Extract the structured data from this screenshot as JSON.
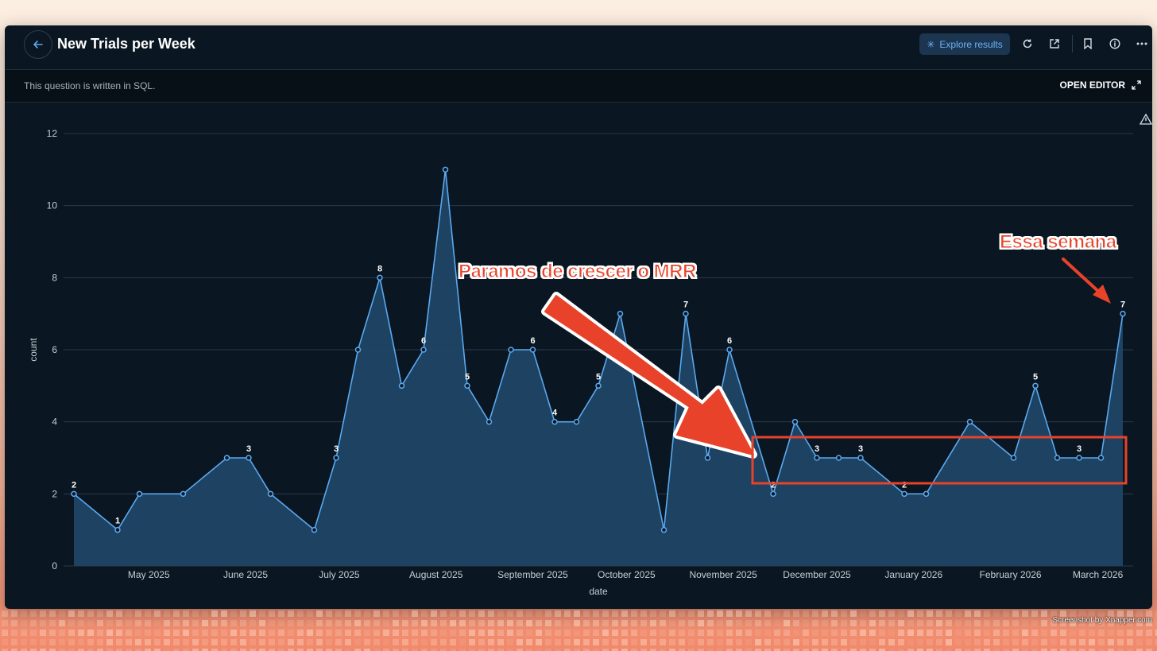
{
  "header": {
    "title": "New Trials per Week",
    "explore_label": "Explore results"
  },
  "subbar": {
    "sql_note": "This question is written in SQL.",
    "open_editor": "OPEN EDITOR"
  },
  "icons": {
    "back": "arrow-left-icon",
    "explore": "sparkle-icon",
    "refresh": "refresh-icon",
    "share": "external-link-icon",
    "bookmark": "bookmark-icon",
    "info": "info-icon",
    "more": "more-icon",
    "expand": "expand-icon",
    "warning": "warning-icon"
  },
  "chart_data": {
    "type": "area",
    "xlabel": "date",
    "ylabel": "count",
    "ylim": [
      0,
      12
    ],
    "yticks": [
      0,
      2,
      4,
      6,
      8,
      10,
      12
    ],
    "grid": true,
    "x_tick_labels": [
      "May 2025",
      "June 2025",
      "July 2025",
      "August 2025",
      "September 2025",
      "October 2025",
      "November 2025",
      "December 2025",
      "January 2026",
      "February 2026",
      "March 2026"
    ],
    "x_tick_dates": [
      "2025-05-01",
      "2025-06-01",
      "2025-07-01",
      "2025-08-01",
      "2025-09-01",
      "2025-10-01",
      "2025-11-01",
      "2025-12-01",
      "2026-01-01",
      "2026-02-01",
      "2026-03-01"
    ],
    "series": [
      {
        "x": [
          "2025-04-07",
          "2025-04-14",
          "2025-04-21",
          "2025-04-28",
          "2025-05-05",
          "2025-05-12",
          "2025-05-19",
          "2025-05-26",
          "2025-06-02",
          "2025-06-09",
          "2025-06-16",
          "2025-06-23",
          "2025-06-30",
          "2025-07-07",
          "2025-07-14",
          "2025-07-21",
          "2025-07-28",
          "2025-08-04",
          "2025-08-11",
          "2025-08-18",
          "2025-08-25",
          "2025-09-01",
          "2025-09-08",
          "2025-09-15",
          "2025-09-22",
          "2025-09-29",
          "2025-10-06",
          "2025-10-13",
          "2025-10-20",
          "2025-10-27",
          "2025-11-03",
          "2025-11-10",
          "2025-11-17",
          "2025-11-24",
          "2025-12-01",
          "2025-12-08",
          "2025-12-15",
          "2025-12-22",
          "2025-12-29",
          "2026-01-05",
          "2026-01-12",
          "2026-01-19",
          "2026-01-26",
          "2026-02-02",
          "2026-02-09",
          "2026-02-16",
          "2026-02-23",
          "2026-03-02",
          "2026-03-09"
        ],
        "y": [
          2,
          null,
          1,
          2,
          null,
          2,
          null,
          3,
          3,
          2,
          null,
          1,
          3,
          6,
          8,
          5,
          6,
          11,
          5,
          4,
          6,
          6,
          4,
          4,
          5,
          7,
          null,
          1,
          7,
          3,
          6,
          null,
          2,
          4,
          3,
          3,
          3,
          null,
          2,
          2,
          null,
          4,
          null,
          3,
          5,
          3,
          3,
          3,
          7
        ],
        "labels": [
          2,
          null,
          1,
          null,
          null,
          null,
          null,
          null,
          3,
          null,
          null,
          null,
          3,
          null,
          8,
          null,
          6,
          null,
          5,
          null,
          null,
          6,
          4,
          null,
          5,
          null,
          null,
          null,
          7,
          null,
          6,
          null,
          2,
          null,
          3,
          null,
          3,
          null,
          2,
          null,
          null,
          null,
          null,
          null,
          5,
          null,
          3,
          null,
          7
        ]
      }
    ],
    "colors": {
      "line": "#5aa9f0",
      "fill": "#1f4466",
      "label": "#ffffff",
      "grid": "#2b3b4a",
      "axis_text": "#c6cdd4"
    }
  },
  "annotations": {
    "arrow_callout": "Paramos de crescer o MRR",
    "week_callout": "Essa semana",
    "color": "#e8432a"
  },
  "footer": {
    "credit": "Screenshot by Xnapper.com"
  }
}
